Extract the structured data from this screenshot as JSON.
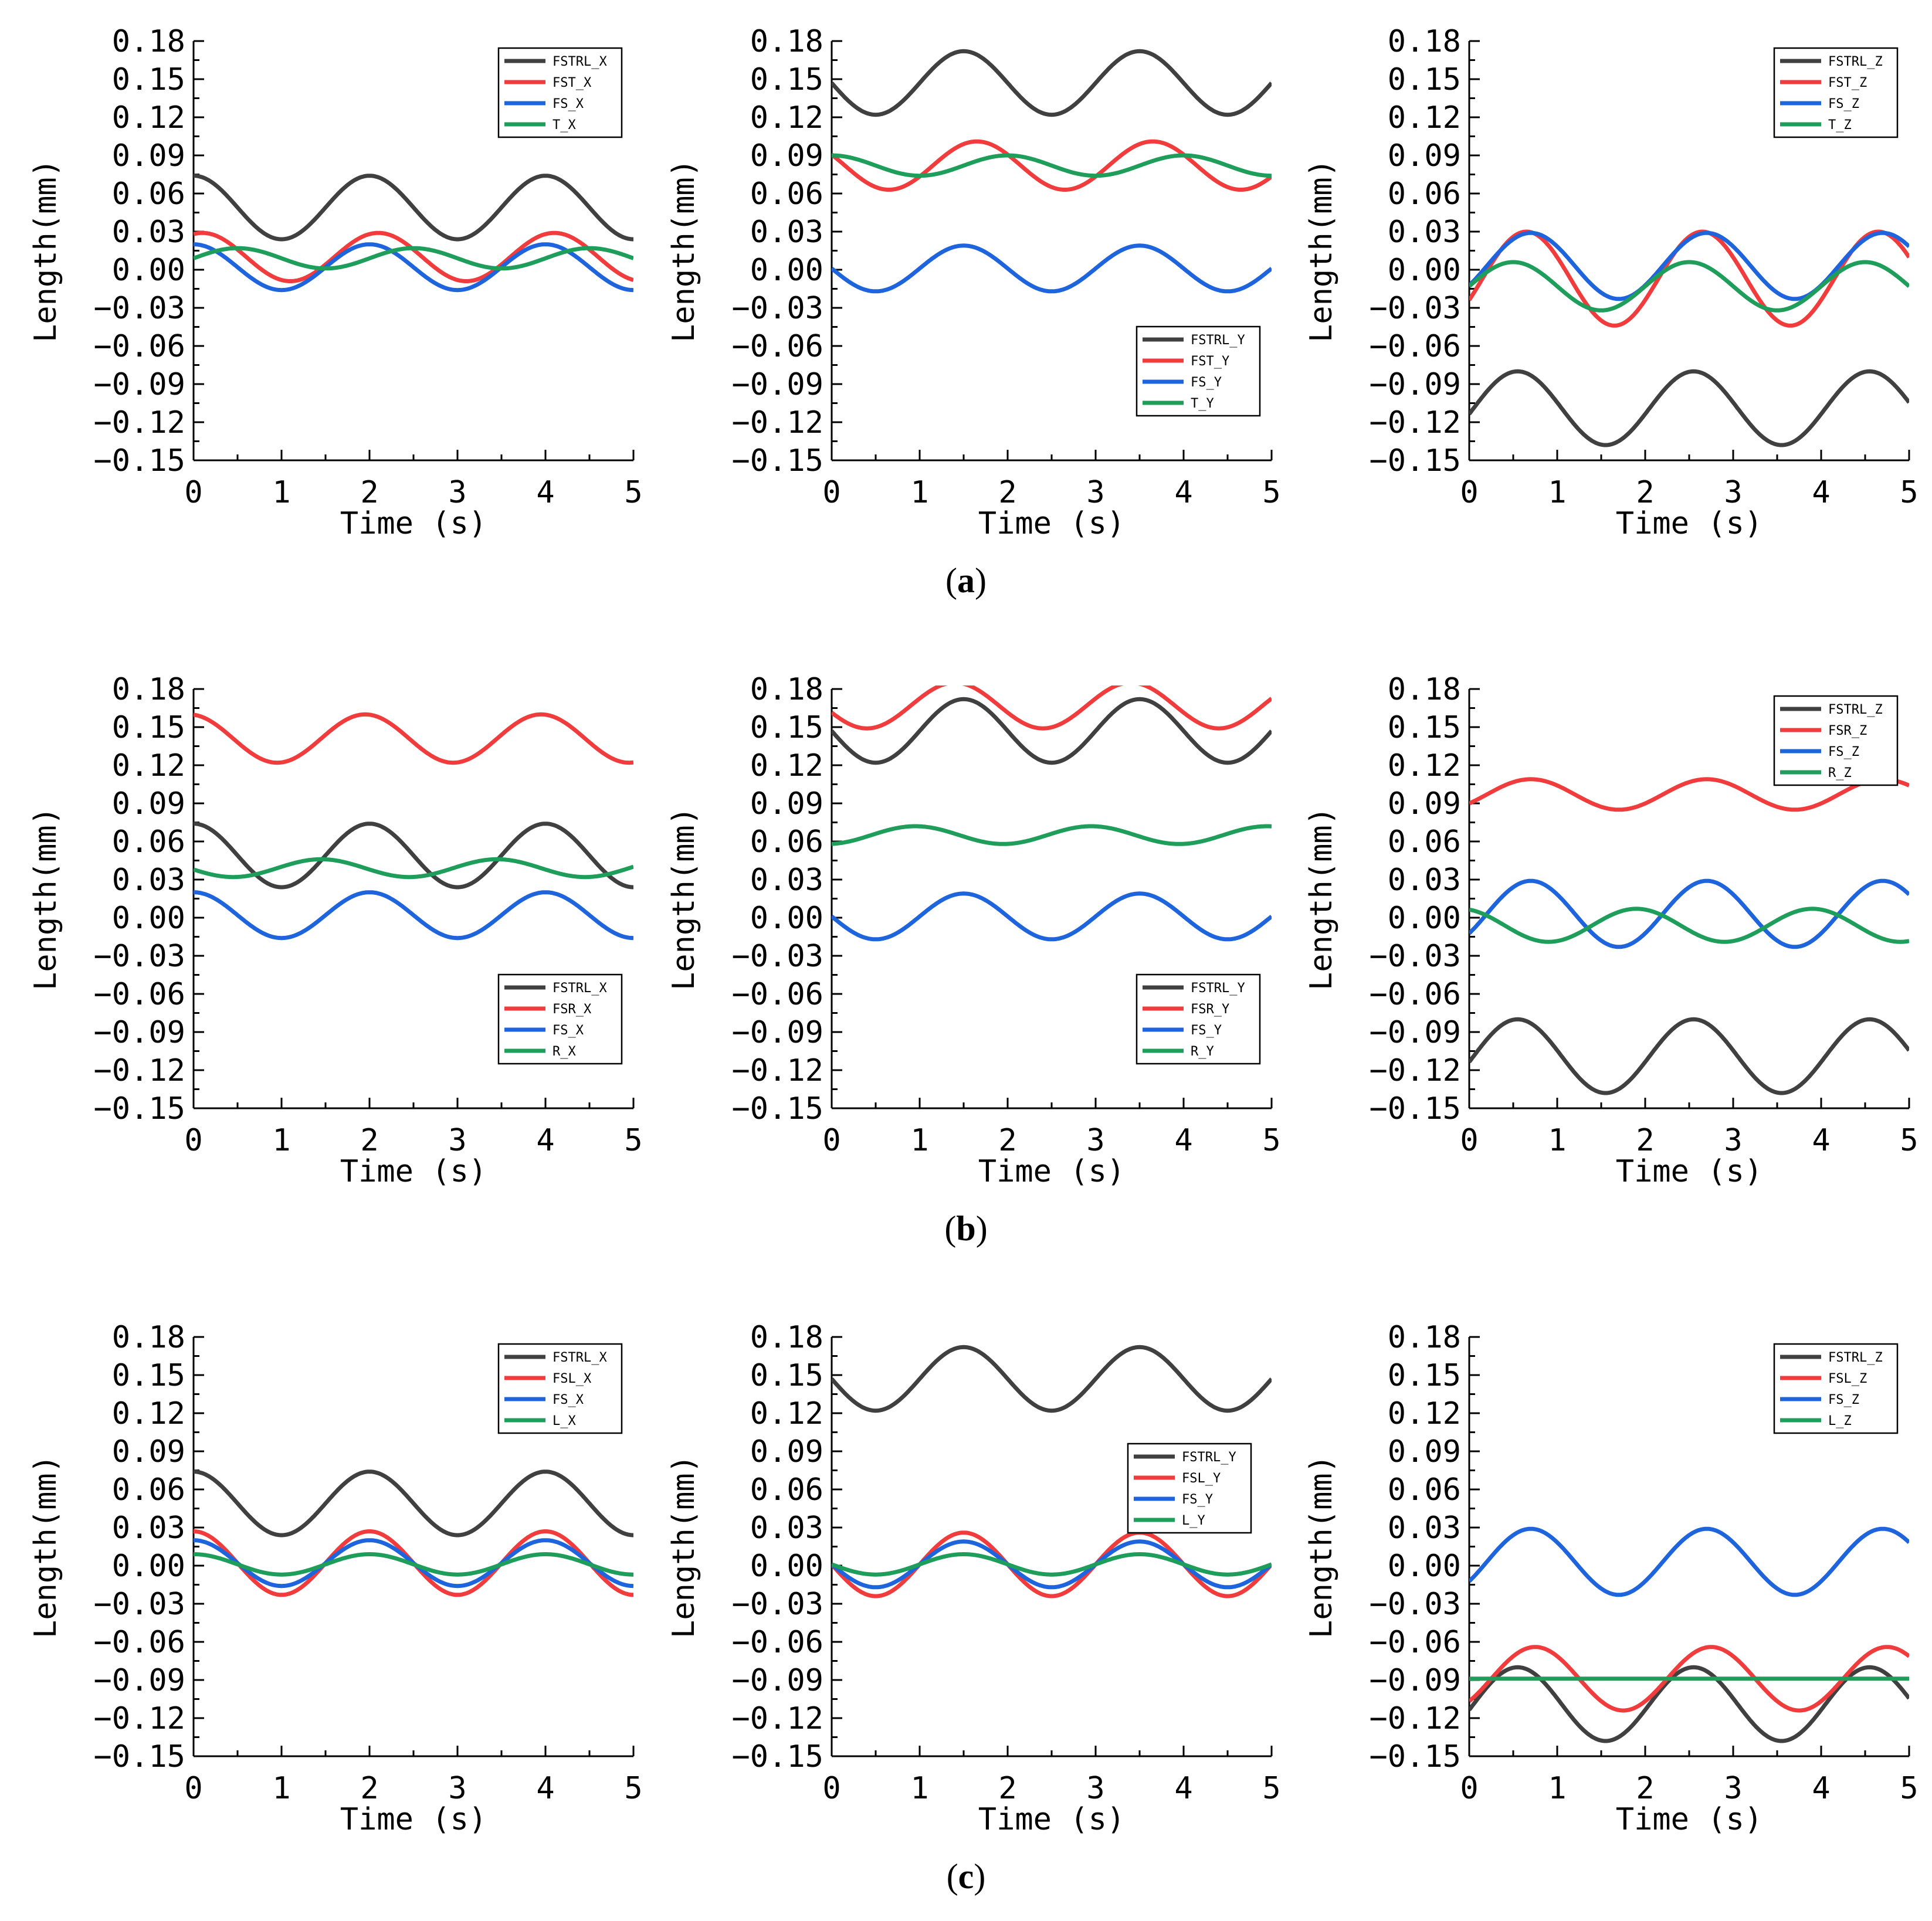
{
  "figure": {
    "captions": [
      "a",
      "b",
      "c"
    ]
  },
  "chart_data": [
    {
      "type": "line",
      "row": "a",
      "xlabel": "Time (s)",
      "ylabel": "Length(mm)",
      "xlim": [
        0,
        5
      ],
      "ylim": [
        -0.15,
        0.18
      ],
      "xticks": [
        "0",
        "1",
        "2",
        "3",
        "4",
        "5"
      ],
      "yticks": [
        "0.18",
        "0.15",
        "0.12",
        "0.09",
        "0.06",
        "0.03",
        "0.00",
        "−0.03",
        "−0.06",
        "−0.09",
        "−0.12",
        "−0.15"
      ],
      "legend_position": "top-right",
      "series": [
        {
          "name": "FSTRL_X",
          "color": "#404040",
          "mean": 0.049,
          "amp": 0.025,
          "period": 2,
          "peak": 2.0
        },
        {
          "name": "FST_X",
          "color": "#f03c3c",
          "mean": 0.01,
          "amp": 0.019,
          "period": 2,
          "peak": 2.1
        },
        {
          "name": "FS_X",
          "color": "#1e64dc",
          "mean": 0.002,
          "amp": 0.018,
          "period": 2,
          "peak": 2.0
        },
        {
          "name": "T_X",
          "color": "#1e9e5a",
          "mean": 0.009,
          "amp": 0.008,
          "period": 2,
          "peak": 0.5
        }
      ]
    },
    {
      "type": "line",
      "row": "a",
      "xlabel": "Time (s)",
      "ylabel": "Length(mm)",
      "xlim": [
        0,
        5
      ],
      "ylim": [
        -0.15,
        0.18
      ],
      "xticks": [
        "0",
        "1",
        "2",
        "3",
        "4",
        "5"
      ],
      "yticks": [
        "0.18",
        "0.15",
        "0.12",
        "0.09",
        "0.06",
        "0.03",
        "0.00",
        "−0.03",
        "−0.06",
        "−0.09",
        "−0.12",
        "−0.15"
      ],
      "legend_position": "bottom-right",
      "series": [
        {
          "name": "FSTRL_Y",
          "color": "#404040",
          "mean": 0.147,
          "amp": 0.025,
          "period": 2,
          "peak": 1.5
        },
        {
          "name": "FST_Y",
          "color": "#f03c3c",
          "mean": 0.082,
          "amp": 0.019,
          "period": 2,
          "peak": 1.65
        },
        {
          "name": "FS_Y",
          "color": "#1e64dc",
          "mean": 0.001,
          "amp": 0.018,
          "period": 2,
          "peak": 1.5
        },
        {
          "name": "T_Y",
          "color": "#1e9e5a",
          "mean": 0.082,
          "amp": 0.008,
          "period": 2,
          "peak": 2.0
        }
      ]
    },
    {
      "type": "line",
      "row": "a",
      "xlabel": "Time (s)",
      "ylabel": "Length(mm)",
      "xlim": [
        0,
        5
      ],
      "ylim": [
        -0.15,
        0.18
      ],
      "xticks": [
        "0",
        "1",
        "2",
        "3",
        "4",
        "5"
      ],
      "yticks": [
        "0.18",
        "0.15",
        "0.12",
        "0.09",
        "0.06",
        "0.03",
        "0.00",
        "−0.03",
        "−0.06",
        "−0.09",
        "−0.12",
        "−0.15"
      ],
      "legend_position": "top-right",
      "series": [
        {
          "name": "FSTRL_Z",
          "color": "#404040",
          "mean": -0.109,
          "amp": 0.029,
          "period": 2,
          "peak": 0.55
        },
        {
          "name": "FST_Z",
          "color": "#f03c3c",
          "mean": -0.007,
          "amp": 0.037,
          "period": 2,
          "peak": 0.65
        },
        {
          "name": "FS_Z",
          "color": "#1e64dc",
          "mean": 0.003,
          "amp": 0.026,
          "period": 2,
          "peak": 0.7
        },
        {
          "name": "T_Z",
          "color": "#1e9e5a",
          "mean": -0.013,
          "amp": 0.019,
          "period": 2,
          "peak": 0.5
        }
      ]
    },
    {
      "type": "line",
      "row": "b",
      "xlabel": "Time (s)",
      "ylabel": "Length(mm)",
      "xlim": [
        0,
        5
      ],
      "ylim": [
        -0.15,
        0.18
      ],
      "xticks": [
        "0",
        "1",
        "2",
        "3",
        "4",
        "5"
      ],
      "yticks": [
        "0.18",
        "0.15",
        "0.12",
        "0.09",
        "0.06",
        "0.03",
        "0.00",
        "−0.03",
        "−0.06",
        "−0.09",
        "−0.12",
        "−0.15"
      ],
      "legend_position": "bottom-right",
      "series": [
        {
          "name": "FSTRL_X",
          "color": "#404040",
          "mean": 0.049,
          "amp": 0.025,
          "period": 2,
          "peak": 2.0
        },
        {
          "name": "FSR_X",
          "color": "#f03c3c",
          "mean": 0.141,
          "amp": 0.019,
          "period": 2,
          "peak": 1.95
        },
        {
          "name": "FS_X",
          "color": "#1e64dc",
          "mean": 0.002,
          "amp": 0.018,
          "period": 2,
          "peak": 2.0
        },
        {
          "name": "R_X",
          "color": "#1e9e5a",
          "mean": 0.039,
          "amp": 0.007,
          "period": 2,
          "peak": 1.45
        }
      ]
    },
    {
      "type": "line",
      "row": "b",
      "xlabel": "Time (s)",
      "ylabel": "Length(mm)",
      "xlim": [
        0,
        5
      ],
      "ylim": [
        -0.15,
        0.18
      ],
      "xticks": [
        "0",
        "1",
        "2",
        "3",
        "4",
        "5"
      ],
      "yticks": [
        "0.18",
        "0.15",
        "0.12",
        "0.09",
        "0.06",
        "0.03",
        "0.00",
        "−0.03",
        "−0.06",
        "−0.09",
        "−0.12",
        "−0.15"
      ],
      "legend_position": "bottom-right",
      "series": [
        {
          "name": "FSTRL_Y",
          "color": "#404040",
          "mean": 0.147,
          "amp": 0.025,
          "period": 2,
          "peak": 1.5
        },
        {
          "name": "FSR_Y",
          "color": "#f03c3c",
          "mean": 0.167,
          "amp": 0.018,
          "period": 2,
          "peak": 1.4
        },
        {
          "name": "FS_Y",
          "color": "#1e64dc",
          "mean": 0.001,
          "amp": 0.018,
          "period": 2,
          "peak": 1.5
        },
        {
          "name": "R_Y",
          "color": "#1e9e5a",
          "mean": 0.065,
          "amp": 0.007,
          "period": 2,
          "peak": 0.95
        }
      ]
    },
    {
      "type": "line",
      "row": "b",
      "xlabel": "Time (s)",
      "ylabel": "Length(mm)",
      "xlim": [
        0,
        5
      ],
      "ylim": [
        -0.15,
        0.18
      ],
      "xticks": [
        "0",
        "1",
        "2",
        "3",
        "4",
        "5"
      ],
      "yticks": [
        "0.18",
        "0.15",
        "0.12",
        "0.09",
        "0.06",
        "0.03",
        "0.00",
        "−0.03",
        "−0.06",
        "−0.09",
        "−0.12",
        "−0.15"
      ],
      "legend_position": "top-right",
      "series": [
        {
          "name": "FSTRL_Z",
          "color": "#404040",
          "mean": -0.109,
          "amp": 0.029,
          "period": 2,
          "peak": 0.55
        },
        {
          "name": "FSR_Z",
          "color": "#f03c3c",
          "mean": 0.097,
          "amp": 0.012,
          "period": 2,
          "peak": 0.7
        },
        {
          "name": "FS_Z",
          "color": "#1e64dc",
          "mean": 0.003,
          "amp": 0.026,
          "period": 2,
          "peak": 0.7
        },
        {
          "name": "R_Z",
          "color": "#1e9e5a",
          "mean": -0.006,
          "amp": 0.013,
          "period": 2,
          "peak": 1.9
        }
      ]
    },
    {
      "type": "line",
      "row": "c",
      "xlabel": "Time (s)",
      "ylabel": "Length(mm)",
      "xlim": [
        0,
        5
      ],
      "ylim": [
        -0.15,
        0.18
      ],
      "xticks": [
        "0",
        "1",
        "2",
        "3",
        "4",
        "5"
      ],
      "yticks": [
        "0.18",
        "0.15",
        "0.12",
        "0.09",
        "0.06",
        "0.03",
        "0.00",
        "−0.03",
        "−0.06",
        "−0.09",
        "−0.12",
        "−0.15"
      ],
      "legend_position": "top-right",
      "series": [
        {
          "name": "FSTRL_X",
          "color": "#404040",
          "mean": 0.049,
          "amp": 0.025,
          "period": 2,
          "peak": 2.0
        },
        {
          "name": "FSL_X",
          "color": "#f03c3c",
          "mean": 0.002,
          "amp": 0.025,
          "period": 2,
          "peak": 2.0
        },
        {
          "name": "FS_X",
          "color": "#1e64dc",
          "mean": 0.002,
          "amp": 0.018,
          "period": 2,
          "peak": 2.0
        },
        {
          "name": "L_X",
          "color": "#1e9e5a",
          "mean": 0.001,
          "amp": 0.008,
          "period": 2,
          "peak": 2.0
        }
      ]
    },
    {
      "type": "line",
      "row": "c",
      "xlabel": "Time (s)",
      "ylabel": "Length(mm)",
      "xlim": [
        0,
        5
      ],
      "ylim": [
        -0.15,
        0.18
      ],
      "xticks": [
        "0",
        "1",
        "2",
        "3",
        "4",
        "5"
      ],
      "yticks": [
        "0.18",
        "0.15",
        "0.12",
        "0.09",
        "0.06",
        "0.03",
        "0.00",
        "−0.03",
        "−0.06",
        "−0.09",
        "−0.12",
        "−0.15"
      ],
      "legend_position": "middle-right",
      "series": [
        {
          "name": "FSTRL_Y",
          "color": "#404040",
          "mean": 0.147,
          "amp": 0.025,
          "period": 2,
          "peak": 1.5
        },
        {
          "name": "FSL_Y",
          "color": "#f03c3c",
          "mean": 0.001,
          "amp": 0.025,
          "period": 2,
          "peak": 1.5
        },
        {
          "name": "FS_Y",
          "color": "#1e64dc",
          "mean": 0.001,
          "amp": 0.018,
          "period": 2,
          "peak": 1.5
        },
        {
          "name": "L_Y",
          "color": "#1e9e5a",
          "mean": 0.001,
          "amp": 0.008,
          "period": 2,
          "peak": 1.5
        }
      ]
    },
    {
      "type": "line",
      "row": "c",
      "xlabel": "Time (s)",
      "ylabel": "Length(mm)",
      "xlim": [
        0,
        5
      ],
      "ylim": [
        -0.15,
        0.18
      ],
      "xticks": [
        "0",
        "1",
        "2",
        "3",
        "4",
        "5"
      ],
      "yticks": [
        "0.18",
        "0.15",
        "0.12",
        "0.09",
        "0.06",
        "0.03",
        "0.00",
        "−0.03",
        "−0.06",
        "−0.09",
        "−0.12",
        "−0.15"
      ],
      "legend_position": "top-right",
      "series": [
        {
          "name": "FSTRL_Z",
          "color": "#404040",
          "mean": -0.109,
          "amp": 0.029,
          "period": 2,
          "peak": 0.55
        },
        {
          "name": "FSL_Z",
          "color": "#f03c3c",
          "mean": -0.089,
          "amp": 0.025,
          "period": 2,
          "peak": 0.75
        },
        {
          "name": "FS_Z",
          "color": "#1e64dc",
          "mean": 0.003,
          "amp": 0.026,
          "period": 2,
          "peak": 0.7
        },
        {
          "name": "L_Z",
          "color": "#1e9e5a",
          "mean": -0.089,
          "amp": 0.0,
          "period": 2,
          "peak": 0.0
        }
      ]
    }
  ]
}
